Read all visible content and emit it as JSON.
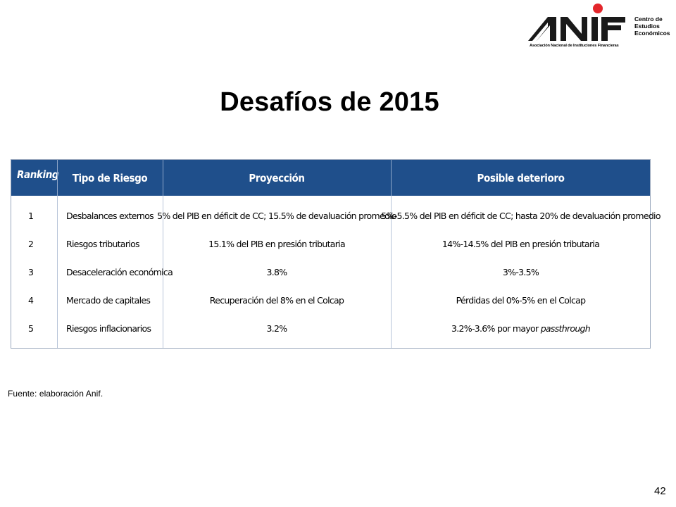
{
  "logo": {
    "name": "ANIF",
    "subtitle": "Asociación Nacional de Instituciones Financieras",
    "centro": [
      "Centro de",
      "Estudios",
      "Económicos"
    ],
    "colors": {
      "mark": "#1a1a1a",
      "dot": "#e3262b"
    }
  },
  "title": "Desafíos de 2015",
  "table": {
    "headers": {
      "ranking": "Ranking",
      "tipo": "Tipo de Riesgo",
      "proyeccion": "Proyección",
      "deterioro": "Posible deterioro"
    },
    "rows": [
      {
        "ranking": "1",
        "tipo": "Desbalances externos",
        "proyeccion": "5% del PIB en déficit de CC; 15.5% de devaluación promedio",
        "deterioro": "5%-5.5% del PIB en déficit de CC; hasta 20% de devaluación promedio"
      },
      {
        "ranking": "2",
        "tipo": "Riesgos tributarios",
        "proyeccion": "15.1% del PIB en presión tributaria",
        "deterioro": "14%-14.5% del PIB en presión tributaria"
      },
      {
        "ranking": "3",
        "tipo": "Desaceleración económica",
        "proyeccion": "3.8%",
        "deterioro": "3%-3.5%"
      },
      {
        "ranking": "4",
        "tipo": "Mercado de capitales",
        "proyeccion": "Recuperación del 8% en el Colcap",
        "deterioro": "Pérdidas del 0%-5% en el Colcap"
      },
      {
        "ranking": "5",
        "tipo": "Riesgos inflacionarios",
        "proyeccion": "3.2%",
        "deterioro_prefix": "3.2%-3.6% por mayor ",
        "deterioro_italic": "passthrough"
      }
    ],
    "header_color": "#1f4f8b"
  },
  "fuente": "Fuente: elaboración Anif.",
  "page_number": "42"
}
